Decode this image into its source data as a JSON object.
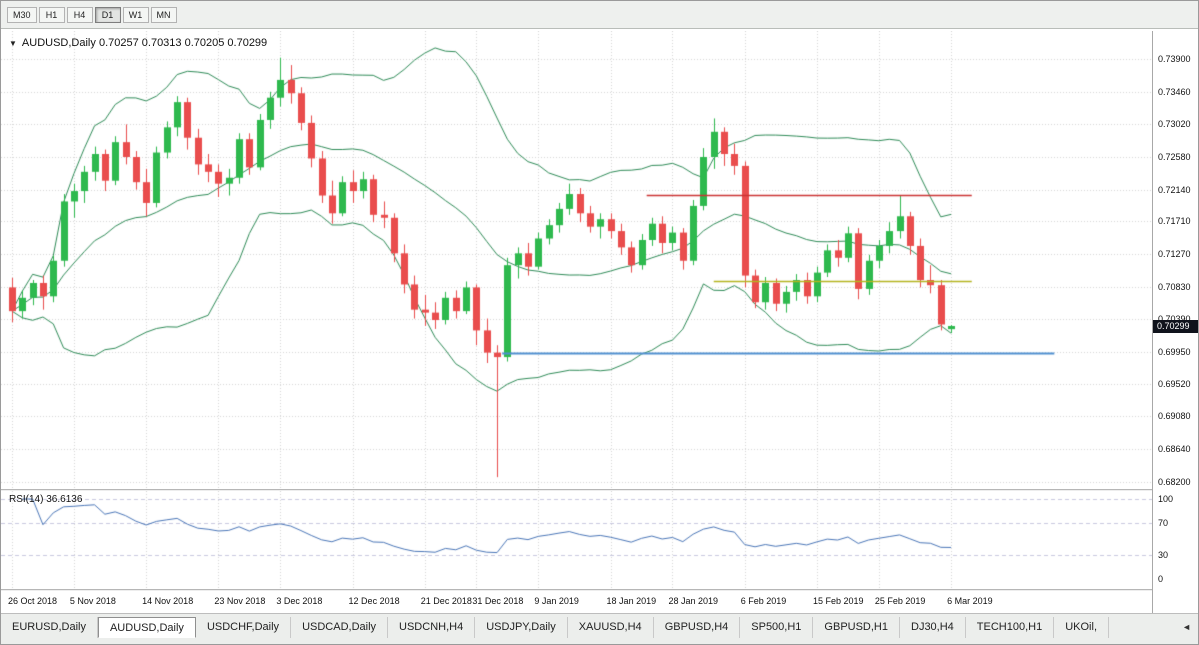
{
  "toolbar": {
    "periods": [
      {
        "label": "M30",
        "active": false
      },
      {
        "label": "H1",
        "active": false
      },
      {
        "label": "H4",
        "active": false
      },
      {
        "label": "D1",
        "active": true
      },
      {
        "label": "W1",
        "active": false
      },
      {
        "label": "MN",
        "active": false
      }
    ]
  },
  "chart": {
    "dropdown_icon": "▼",
    "title_symbol": "AUDUSD,Daily",
    "title_ohlc": "0.70257 0.70313 0.70205 0.70299",
    "current_price_label": "0.70299"
  },
  "chart_data": {
    "type": "candlestick",
    "symbol": "AUDUSD",
    "timeframe": "Daily",
    "ohlc_display": {
      "open": 0.70257,
      "high": 0.70313,
      "low": 0.70205,
      "close": 0.70299
    },
    "y_range": [
      0.681,
      0.7428
    ],
    "y_ticks": [
      "0.73900",
      "0.73460",
      "0.73020",
      "0.72580",
      "0.72140",
      "0.71710",
      "0.71270",
      "0.70830",
      "0.70390",
      "0.69950",
      "0.69520",
      "0.69080",
      "0.68640",
      "0.68200"
    ],
    "x_tick_labels": [
      "26 Oct 2018",
      "5 Nov 2018",
      "14 Nov 2018",
      "23 Nov 2018",
      "3 Dec 2018",
      "12 Dec 2018",
      "21 Dec 2018",
      "31 Dec 2018",
      "9 Jan 2019",
      "18 Jan 2019",
      "28 Jan 2019",
      "6 Feb 2019",
      "15 Feb 2019",
      "25 Feb 2019",
      "6 Mar 2019"
    ],
    "x_tick_indices": [
      0,
      6,
      13,
      20,
      26,
      33,
      40,
      45,
      51,
      58,
      64,
      71,
      78,
      84,
      91
    ],
    "up_color": "#2eb94e",
    "down_color": "#e94d4d",
    "grid_color": "#d6d6d6",
    "overlays": {
      "bollinger_period": 20,
      "bollinger_deviation": 2,
      "bollinger_color": "#2E8B57"
    },
    "hlines": [
      {
        "value": 0.7207,
        "color": "#cc3333",
        "width": 1.4,
        "from_index": 61.5,
        "to_index": 93
      },
      {
        "value": 0.709,
        "color": "#b5b520",
        "width": 1.4,
        "from_index": 68,
        "to_index": 93
      },
      {
        "value": 0.6993,
        "color": "#4f8fd0",
        "width": 2,
        "from_index": 47.5,
        "to_index": 101
      }
    ],
    "candles": [
      [
        0.7082,
        0.7095,
        0.7035,
        0.705
      ],
      [
        0.705,
        0.7078,
        0.704,
        0.7068
      ],
      [
        0.7068,
        0.7092,
        0.7058,
        0.7088
      ],
      [
        0.7088,
        0.7098,
        0.7052,
        0.707
      ],
      [
        0.707,
        0.7125,
        0.7062,
        0.7118
      ],
      [
        0.7118,
        0.7208,
        0.711,
        0.7198
      ],
      [
        0.7198,
        0.7222,
        0.7176,
        0.7212
      ],
      [
        0.7212,
        0.7246,
        0.7196,
        0.7238
      ],
      [
        0.7238,
        0.7272,
        0.7226,
        0.7262
      ],
      [
        0.7262,
        0.7268,
        0.7212,
        0.7226
      ],
      [
        0.7226,
        0.7286,
        0.722,
        0.7278
      ],
      [
        0.7278,
        0.7302,
        0.7248,
        0.7258
      ],
      [
        0.7258,
        0.7266,
        0.7214,
        0.7224
      ],
      [
        0.7224,
        0.7242,
        0.7178,
        0.7196
      ],
      [
        0.7196,
        0.7272,
        0.719,
        0.7264
      ],
      [
        0.7264,
        0.7306,
        0.7256,
        0.7298
      ],
      [
        0.7298,
        0.734,
        0.7286,
        0.7332
      ],
      [
        0.7332,
        0.7338,
        0.7268,
        0.7284
      ],
      [
        0.7284,
        0.7296,
        0.7234,
        0.7248
      ],
      [
        0.7248,
        0.7262,
        0.7224,
        0.7238
      ],
      [
        0.7238,
        0.7248,
        0.7204,
        0.7222
      ],
      [
        0.7222,
        0.7242,
        0.7206,
        0.723
      ],
      [
        0.723,
        0.729,
        0.7222,
        0.7282
      ],
      [
        0.7282,
        0.729,
        0.7234,
        0.7244
      ],
      [
        0.7244,
        0.7316,
        0.724,
        0.7308
      ],
      [
        0.7308,
        0.7346,
        0.7296,
        0.7338
      ],
      [
        0.7338,
        0.7392,
        0.7326,
        0.7362
      ],
      [
        0.7362,
        0.7382,
        0.733,
        0.7344
      ],
      [
        0.7344,
        0.7352,
        0.7294,
        0.7304
      ],
      [
        0.7304,
        0.7314,
        0.7244,
        0.7256
      ],
      [
        0.7256,
        0.7266,
        0.7196,
        0.7206
      ],
      [
        0.7206,
        0.7226,
        0.7168,
        0.7182
      ],
      [
        0.7182,
        0.7232,
        0.7178,
        0.7224
      ],
      [
        0.7224,
        0.724,
        0.7196,
        0.7212
      ],
      [
        0.7212,
        0.7238,
        0.7202,
        0.7228
      ],
      [
        0.7228,
        0.7234,
        0.717,
        0.718
      ],
      [
        0.718,
        0.7198,
        0.7162,
        0.7176
      ],
      [
        0.7176,
        0.7182,
        0.7116,
        0.7128
      ],
      [
        0.7128,
        0.714,
        0.7074,
        0.7086
      ],
      [
        0.7086,
        0.7098,
        0.704,
        0.7052
      ],
      [
        0.7052,
        0.7072,
        0.703,
        0.7048
      ],
      [
        0.7048,
        0.7062,
        0.7026,
        0.7038
      ],
      [
        0.7038,
        0.7076,
        0.7032,
        0.7068
      ],
      [
        0.7068,
        0.7078,
        0.704,
        0.705
      ],
      [
        0.705,
        0.709,
        0.7046,
        0.7082
      ],
      [
        0.7082,
        0.7086,
        0.7004,
        0.7024
      ],
      [
        0.7024,
        0.704,
        0.698,
        0.6994
      ],
      [
        0.6994,
        0.7004,
        0.6826,
        0.6988
      ],
      [
        0.6988,
        0.7122,
        0.6982,
        0.7112
      ],
      [
        0.7112,
        0.7136,
        0.7094,
        0.7128
      ],
      [
        0.7128,
        0.7142,
        0.7098,
        0.711
      ],
      [
        0.711,
        0.7156,
        0.7106,
        0.7148
      ],
      [
        0.7148,
        0.7174,
        0.714,
        0.7166
      ],
      [
        0.7166,
        0.7196,
        0.7156,
        0.7188
      ],
      [
        0.7188,
        0.7222,
        0.718,
        0.7208
      ],
      [
        0.7208,
        0.7216,
        0.717,
        0.7182
      ],
      [
        0.7182,
        0.7192,
        0.7156,
        0.7164
      ],
      [
        0.7164,
        0.7182,
        0.7148,
        0.7174
      ],
      [
        0.7174,
        0.7182,
        0.7148,
        0.7158
      ],
      [
        0.7158,
        0.7168,
        0.7126,
        0.7136
      ],
      [
        0.7136,
        0.7144,
        0.7102,
        0.7112
      ],
      [
        0.7112,
        0.7154,
        0.7106,
        0.7146
      ],
      [
        0.7146,
        0.7176,
        0.7138,
        0.7168
      ],
      [
        0.7168,
        0.7178,
        0.7128,
        0.7142
      ],
      [
        0.7142,
        0.7164,
        0.7132,
        0.7156
      ],
      [
        0.7156,
        0.7162,
        0.7106,
        0.7118
      ],
      [
        0.7118,
        0.72,
        0.7112,
        0.7192
      ],
      [
        0.7192,
        0.727,
        0.7186,
        0.7258
      ],
      [
        0.7258,
        0.731,
        0.7242,
        0.7292
      ],
      [
        0.7292,
        0.7298,
        0.7246,
        0.7262
      ],
      [
        0.7262,
        0.7276,
        0.7234,
        0.7246
      ],
      [
        0.7246,
        0.7252,
        0.7082,
        0.7098
      ],
      [
        0.7098,
        0.7106,
        0.7054,
        0.7062
      ],
      [
        0.7062,
        0.7096,
        0.7052,
        0.7088
      ],
      [
        0.7088,
        0.7094,
        0.705,
        0.706
      ],
      [
        0.706,
        0.7084,
        0.7048,
        0.7076
      ],
      [
        0.7076,
        0.71,
        0.7064,
        0.7092
      ],
      [
        0.7092,
        0.7102,
        0.706,
        0.707
      ],
      [
        0.707,
        0.711,
        0.7062,
        0.7102
      ],
      [
        0.7102,
        0.714,
        0.7096,
        0.7132
      ],
      [
        0.7132,
        0.7146,
        0.711,
        0.7122
      ],
      [
        0.7122,
        0.7164,
        0.7116,
        0.7155
      ],
      [
        0.7155,
        0.7162,
        0.7066,
        0.708
      ],
      [
        0.708,
        0.7126,
        0.7072,
        0.7118
      ],
      [
        0.7118,
        0.7146,
        0.7108,
        0.7138
      ],
      [
        0.7138,
        0.717,
        0.7128,
        0.7158
      ],
      [
        0.7158,
        0.7206,
        0.7148,
        0.7178
      ],
      [
        0.7178,
        0.7184,
        0.7126,
        0.7138
      ],
      [
        0.7138,
        0.7148,
        0.7082,
        0.7092
      ],
      [
        0.7092,
        0.7112,
        0.7074,
        0.7085
      ],
      [
        0.7085,
        0.7092,
        0.7024,
        0.7032
      ],
      [
        0.70257,
        0.70313,
        0.70205,
        0.70299
      ]
    ],
    "indicator": {
      "name": "RSI",
      "period": 14,
      "label": "RSI(14) 36.6136",
      "current_value": 36.6136,
      "range": [
        0,
        100
      ],
      "levels": [
        "100",
        "70",
        "30",
        "0"
      ],
      "dashed_levels": [
        100,
        70,
        30
      ],
      "dashed_color": "#c9c9e0",
      "line_color": "#4a76b8"
    }
  },
  "bottom_tabs": {
    "scroll_left": "◄",
    "items": [
      {
        "label": "EURUSD,Daily",
        "active": false
      },
      {
        "label": "AUDUSD,Daily",
        "active": true
      },
      {
        "label": "USDCHF,Daily",
        "active": false
      },
      {
        "label": "USDCAD,Daily",
        "active": false
      },
      {
        "label": "USDCNH,H4",
        "active": false
      },
      {
        "label": "USDJPY,Daily",
        "active": false
      },
      {
        "label": "XAUUSD,H4",
        "active": false
      },
      {
        "label": "GBPUSD,H4",
        "active": false
      },
      {
        "label": "SP500,H1",
        "active": false
      },
      {
        "label": "GBPUSD,H1",
        "active": false
      },
      {
        "label": "DJ30,H4",
        "active": false
      },
      {
        "label": "TECH100,H1",
        "active": false
      },
      {
        "label": "UKOil,",
        "active": false
      }
    ]
  }
}
